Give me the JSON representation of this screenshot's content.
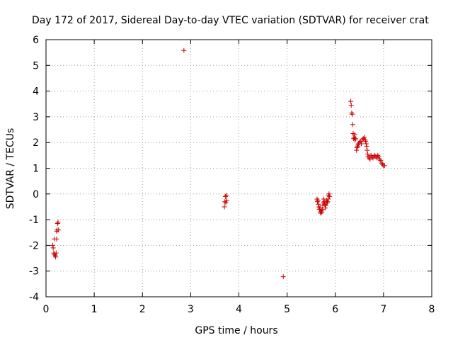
{
  "chart_data": {
    "type": "scatter",
    "title": "Day 172 of 2017, Sidereal Day-to-day VTEC variation (SDTVAR) for receiver crat",
    "xlabel": "GPS time / hours",
    "ylabel": "SDTVAR / TECUs",
    "xlim": [
      0,
      8
    ],
    "ylim": [
      -4,
      6
    ],
    "xticks": [
      "0",
      "1",
      "2",
      "3",
      "4",
      "5",
      "6",
      "7",
      "8"
    ],
    "yticks": [
      "-4",
      "-3",
      "-2",
      "-1",
      "0",
      "1",
      "2",
      "3",
      "4",
      "5",
      "6"
    ],
    "grid": true,
    "marker": "+",
    "colors": {
      "series": "#cc0000",
      "grid": "#a0a0a0",
      "axis": "#000000"
    },
    "series": [
      {
        "points": [
          [
            0.14,
            -2.0
          ],
          [
            0.15,
            -2.1
          ],
          [
            0.16,
            -2.3
          ],
          [
            0.17,
            -1.75
          ],
          [
            0.18,
            -2.35
          ],
          [
            0.19,
            -2.4
          ],
          [
            0.2,
            -2.45
          ],
          [
            0.21,
            -2.3
          ],
          [
            0.22,
            -1.75
          ],
          [
            0.22,
            -1.45
          ],
          [
            0.23,
            -1.4
          ],
          [
            0.24,
            -1.15
          ],
          [
            0.25,
            -1.1
          ],
          [
            0.26,
            -1.4
          ],
          [
            2.86,
            5.58
          ],
          [
            3.7,
            -0.5
          ],
          [
            3.71,
            -0.3
          ],
          [
            3.72,
            -0.1
          ],
          [
            3.73,
            -0.35
          ],
          [
            3.74,
            -0.05
          ],
          [
            3.75,
            -0.25
          ],
          [
            4.92,
            -3.22
          ],
          [
            5.62,
            -0.2
          ],
          [
            5.63,
            -0.3
          ],
          [
            5.64,
            -0.25
          ],
          [
            5.65,
            -0.4
          ],
          [
            5.66,
            -0.5
          ],
          [
            5.67,
            -0.6
          ],
          [
            5.68,
            -0.55
          ],
          [
            5.69,
            -0.7
          ],
          [
            5.7,
            -0.75
          ],
          [
            5.71,
            -0.65
          ],
          [
            5.72,
            -0.7
          ],
          [
            5.73,
            -0.6
          ],
          [
            5.74,
            -0.45
          ],
          [
            5.75,
            -0.35
          ],
          [
            5.76,
            -0.2
          ],
          [
            5.77,
            -0.3
          ],
          [
            5.78,
            -0.4
          ],
          [
            5.79,
            -0.55
          ],
          [
            5.8,
            -0.45
          ],
          [
            5.81,
            -0.35
          ],
          [
            5.82,
            -0.25
          ],
          [
            5.83,
            -0.35
          ],
          [
            5.84,
            -0.3
          ],
          [
            5.85,
            -0.2
          ],
          [
            5.86,
            -0.05
          ],
          [
            5.87,
            0.0
          ],
          [
            5.88,
            -0.1
          ],
          [
            6.32,
            3.6
          ],
          [
            6.33,
            3.45
          ],
          [
            6.34,
            3.15
          ],
          [
            6.35,
            3.1
          ],
          [
            6.36,
            2.7
          ],
          [
            6.37,
            2.35
          ],
          [
            6.38,
            2.15
          ],
          [
            6.39,
            2.2
          ],
          [
            6.4,
            2.3
          ],
          [
            6.41,
            2.1
          ],
          [
            6.42,
            2.15
          ],
          [
            6.44,
            1.7
          ],
          [
            6.45,
            1.8
          ],
          [
            6.46,
            1.85
          ],
          [
            6.47,
            1.9
          ],
          [
            6.48,
            1.95
          ],
          [
            6.5,
            2.0
          ],
          [
            6.52,
            2.05
          ],
          [
            6.54,
            1.95
          ],
          [
            6.56,
            2.1
          ],
          [
            6.58,
            2.15
          ],
          [
            6.6,
            2.2
          ],
          [
            6.62,
            2.1
          ],
          [
            6.63,
            2.05
          ],
          [
            6.64,
            1.95
          ],
          [
            6.65,
            1.85
          ],
          [
            6.66,
            1.7
          ],
          [
            6.67,
            1.55
          ],
          [
            6.68,
            1.45
          ],
          [
            6.7,
            1.4
          ],
          [
            6.72,
            1.35
          ],
          [
            6.74,
            1.5
          ],
          [
            6.76,
            1.45
          ],
          [
            6.78,
            1.4
          ],
          [
            6.8,
            1.45
          ],
          [
            6.82,
            1.5
          ],
          [
            6.84,
            1.45
          ],
          [
            6.86,
            1.4
          ],
          [
            6.88,
            1.5
          ],
          [
            6.9,
            1.45
          ],
          [
            6.92,
            1.35
          ],
          [
            6.94,
            1.3
          ],
          [
            6.96,
            1.2
          ],
          [
            6.98,
            1.15
          ],
          [
            7.0,
            1.1
          ],
          [
            7.02,
            1.1
          ]
        ]
      }
    ]
  }
}
